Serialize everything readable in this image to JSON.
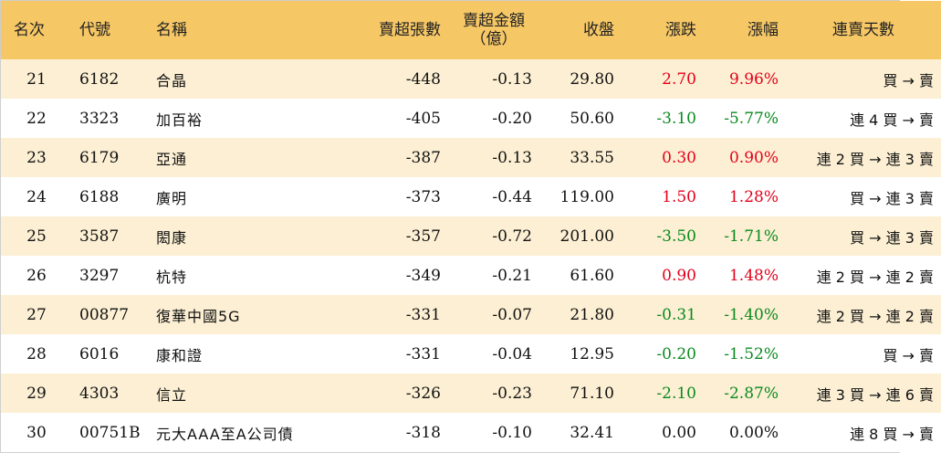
{
  "colors": {
    "header_bg": "#f6c765",
    "row_alt_bg": "#fcefd3",
    "up": "#e3001b",
    "down": "#0a8a1f"
  },
  "headers": {
    "rank": "名次",
    "code": "代號",
    "name": "名稱",
    "net_sell_lots": "賣超張數",
    "net_sell_amount_line1": "賣超金額",
    "net_sell_amount_line2": "（億）",
    "close": "收盤",
    "change": "漲跌",
    "change_pct": "漲幅",
    "streak": "連賣天數"
  },
  "rows": [
    {
      "rank": "21",
      "code": "6182",
      "name": "合晶",
      "lots": "-448",
      "amount": "-0.13",
      "close": "29.80",
      "change": "2.70",
      "pct": "9.96%",
      "dir": "up",
      "streak": "買 → 賣"
    },
    {
      "rank": "22",
      "code": "3323",
      "name": "加百裕",
      "lots": "-405",
      "amount": "-0.20",
      "close": "50.60",
      "change": "-3.10",
      "pct": "-5.77%",
      "dir": "down",
      "streak": "連 4 買 → 賣"
    },
    {
      "rank": "23",
      "code": "6179",
      "name": "亞通",
      "lots": "-387",
      "amount": "-0.13",
      "close": "33.55",
      "change": "0.30",
      "pct": "0.90%",
      "dir": "up",
      "streak": "連 2 買 → 連 3 賣"
    },
    {
      "rank": "24",
      "code": "6188",
      "name": "廣明",
      "lots": "-373",
      "amount": "-0.44",
      "close": "119.00",
      "change": "1.50",
      "pct": "1.28%",
      "dir": "up",
      "streak": "買 → 連 3 賣"
    },
    {
      "rank": "25",
      "code": "3587",
      "name": "閎康",
      "lots": "-357",
      "amount": "-0.72",
      "close": "201.00",
      "change": "-3.50",
      "pct": "-1.71%",
      "dir": "down",
      "streak": "買 → 連 3 賣"
    },
    {
      "rank": "26",
      "code": "3297",
      "name": "杭特",
      "lots": "-349",
      "amount": "-0.21",
      "close": "61.60",
      "change": "0.90",
      "pct": "1.48%",
      "dir": "up",
      "streak": "連 2 買 → 連 2 賣"
    },
    {
      "rank": "27",
      "code": "00877",
      "name": "復華中國5G",
      "lots": "-331",
      "amount": "-0.07",
      "close": "21.80",
      "change": "-0.31",
      "pct": "-1.40%",
      "dir": "down",
      "streak": "連 2 買 → 連 2 賣"
    },
    {
      "rank": "28",
      "code": "6016",
      "name": "康和證",
      "lots": "-331",
      "amount": "-0.04",
      "close": "12.95",
      "change": "-0.20",
      "pct": "-1.52%",
      "dir": "down",
      "streak": "買 → 賣"
    },
    {
      "rank": "29",
      "code": "4303",
      "name": "信立",
      "lots": "-326",
      "amount": "-0.23",
      "close": "71.10",
      "change": "-2.10",
      "pct": "-2.87%",
      "dir": "down",
      "streak": "連 3 買 → 連 6 賣"
    },
    {
      "rank": "30",
      "code": "00751B",
      "name": "元大AAA至A公司債",
      "lots": "-318",
      "amount": "-0.10",
      "close": "32.41",
      "change": "0.00",
      "pct": "0.00%",
      "dir": "flat",
      "streak": "連 8 買 → 賣"
    }
  ]
}
